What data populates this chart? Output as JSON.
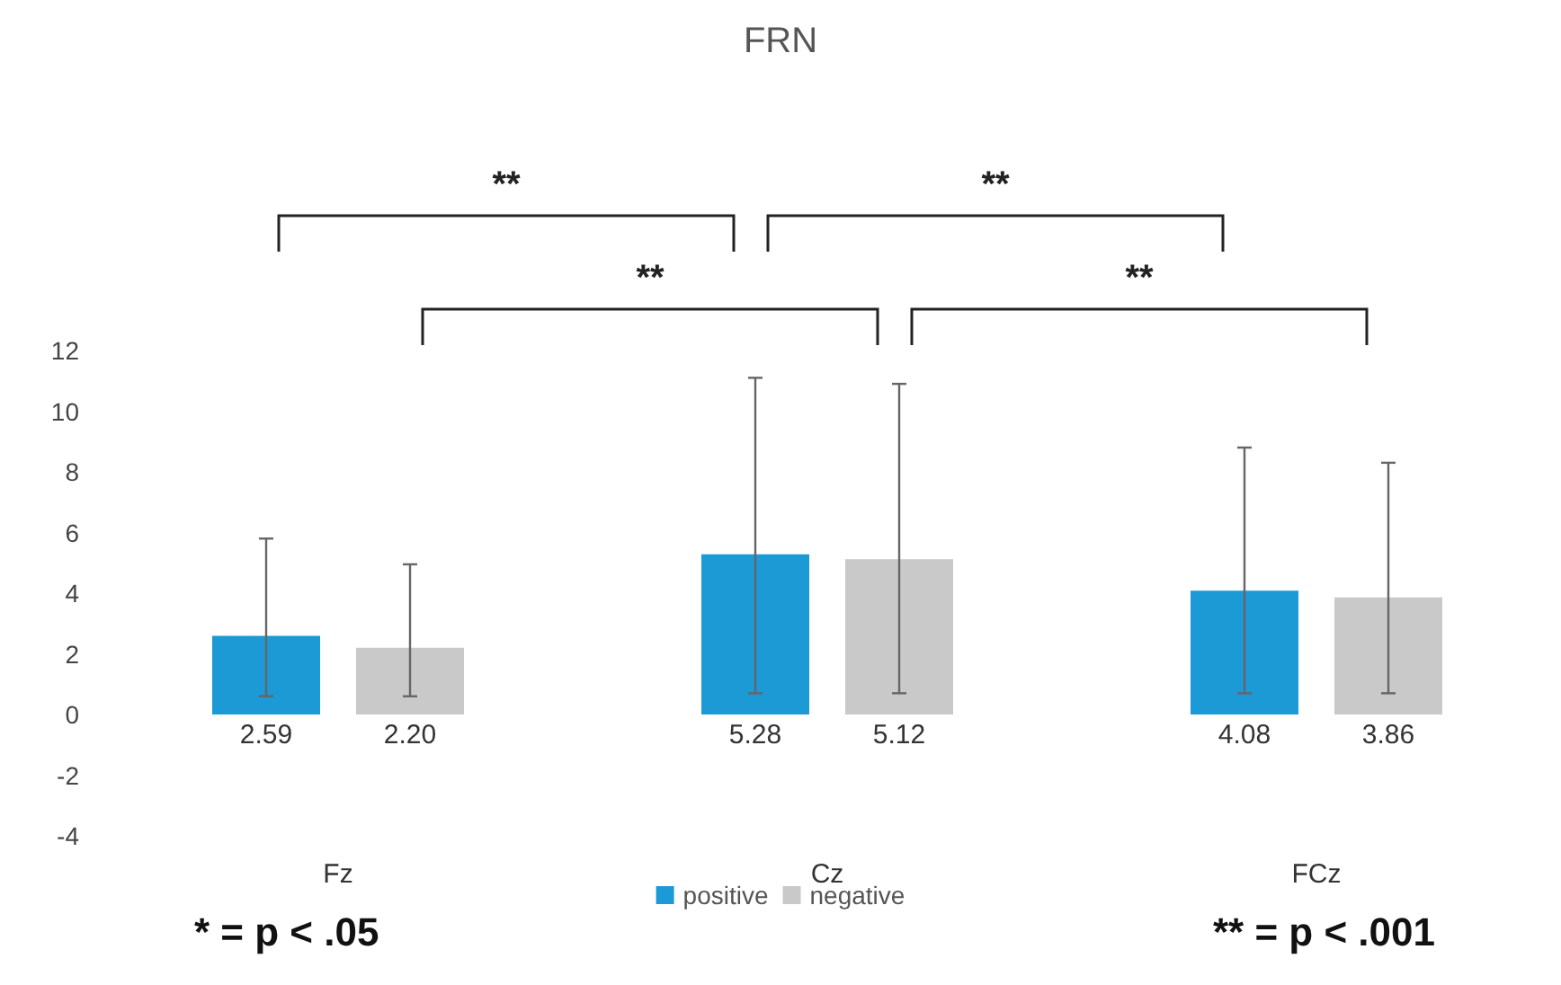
{
  "chart_data": {
    "type": "bar",
    "title": "FRN",
    "categories": [
      "Fz",
      "Cz",
      "FCz"
    ],
    "series": [
      {
        "name": "positive",
        "color": "#1b9ad6",
        "values": [
          2.59,
          5.28,
          4.08
        ],
        "value_labels": [
          "2.59",
          "5.28",
          "4.08"
        ],
        "errors": [
          [
            0.6,
            5.8
          ],
          [
            0.7,
            11.1
          ],
          [
            0.7,
            8.8
          ]
        ]
      },
      {
        "name": "negative",
        "color": "#c9c9c9",
        "values": [
          2.2,
          5.12,
          3.86
        ],
        "value_labels": [
          "2.20",
          "5.12",
          "3.86"
        ],
        "errors": [
          [
            0.6,
            4.95
          ],
          [
            0.7,
            10.9
          ],
          [
            0.7,
            8.3
          ]
        ]
      }
    ],
    "ylim": [
      -4,
      12
    ],
    "yticks": [
      -4,
      -2,
      0,
      2,
      4,
      6,
      8,
      10,
      12
    ],
    "grid": false,
    "legend": "bottom",
    "annotations": [
      "**",
      "**",
      "**",
      "**",
      "* = p < .05",
      "** = p < .001"
    ]
  }
}
